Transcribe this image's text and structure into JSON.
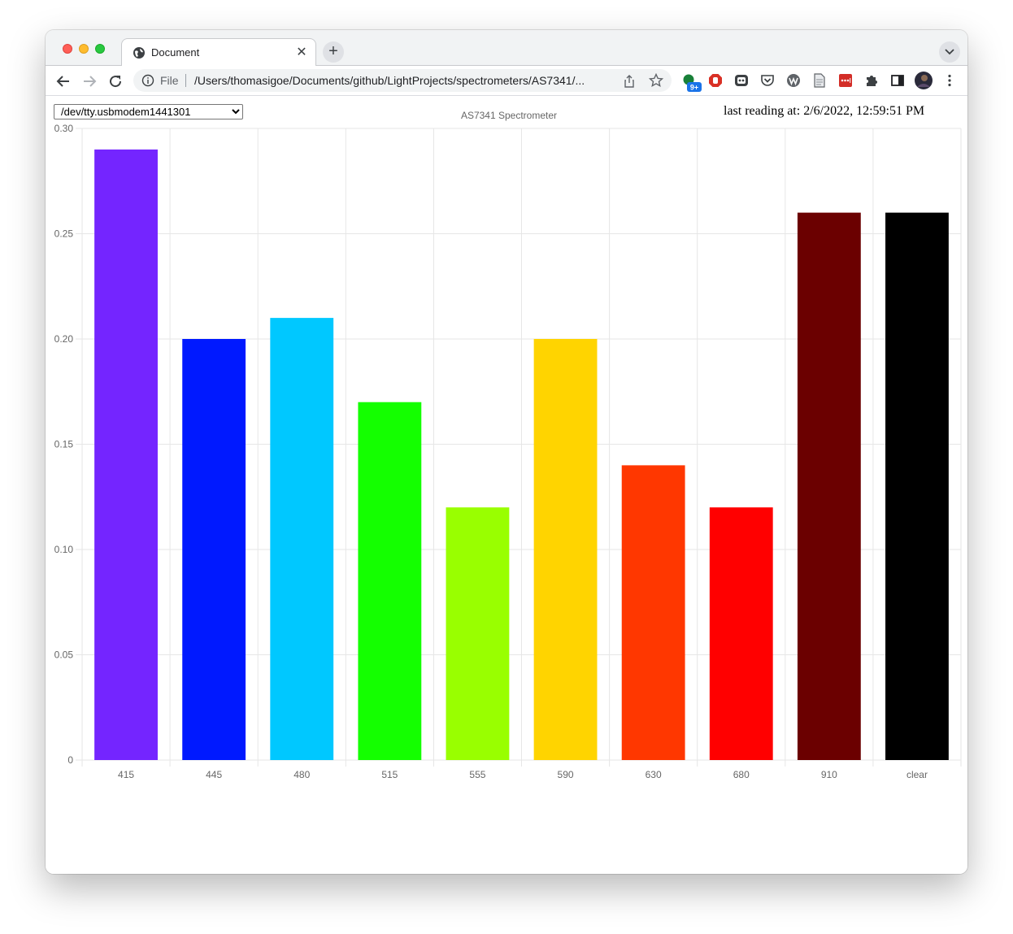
{
  "browser": {
    "tab_title": "Document",
    "omnibox_scheme": "File",
    "omnibox_url": "/Users/thomasigoe/Documents/github/LightProjects/spectrometers/AS7341/...",
    "extension_badge": "9+"
  },
  "page": {
    "port_select_value": "/dev/tty.usbmodem1441301",
    "last_reading_label": "last reading at:",
    "last_reading_time": "2/6/2022, 12:59:51 PM"
  },
  "chart_data": {
    "type": "bar",
    "title": "AS7341 Spectrometer",
    "categories": [
      "415",
      "445",
      "480",
      "515",
      "555",
      "590",
      "630",
      "680",
      "910",
      "clear"
    ],
    "values": [
      0.29,
      0.2,
      0.21,
      0.17,
      0.12,
      0.2,
      0.14,
      0.12,
      0.26,
      0.26
    ],
    "colors": [
      "#7425ff",
      "#0019ff",
      "#00c8ff",
      "#14ff00",
      "#99ff00",
      "#ffd400",
      "#ff3700",
      "#ff0000",
      "#6b0000",
      "#000000"
    ],
    "ylim": [
      0,
      0.3
    ],
    "yticks": [
      "0",
      "0.05",
      "0.10",
      "0.15",
      "0.20",
      "0.25",
      "0.30"
    ],
    "ytick_values": [
      0,
      0.05,
      0.1,
      0.15,
      0.2,
      0.25,
      0.3
    ],
    "grid": true,
    "legend": "none",
    "grid_color": "#e6e6e6"
  }
}
